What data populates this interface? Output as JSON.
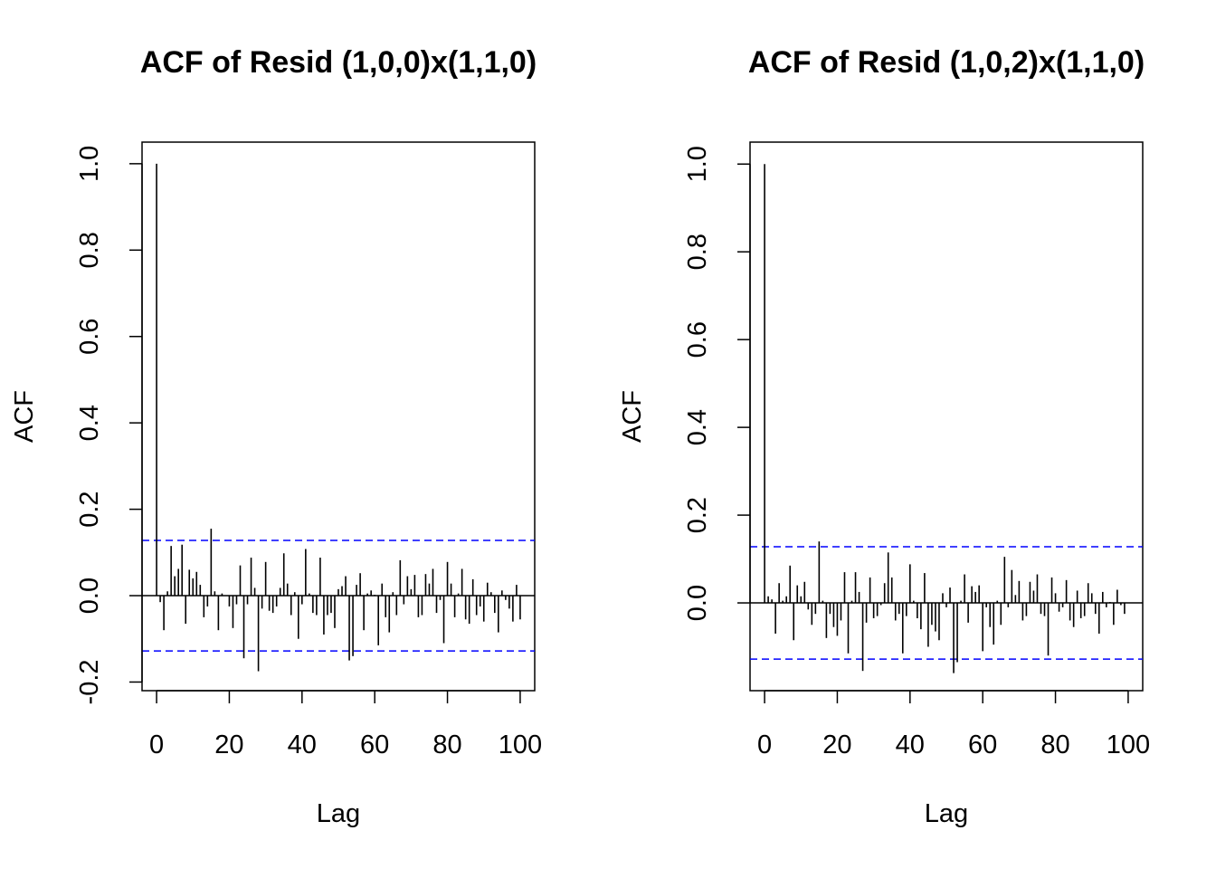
{
  "chart_data": [
    {
      "type": "bar",
      "subtype": "acf",
      "title": "ACF of Resid (1,0,0)x(1,1,0)",
      "xlabel": "Lag",
      "ylabel": "ACF",
      "xlim": [
        -4,
        104
      ],
      "ylim": [
        -0.22,
        1.05
      ],
      "xticks": [
        0,
        20,
        40,
        60,
        80,
        100
      ],
      "xtick_labels": [
        "0",
        "20",
        "40",
        "60",
        "80",
        "100"
      ],
      "yticks": [
        -0.2,
        0.0,
        0.2,
        0.4,
        0.6,
        0.8,
        1.0
      ],
      "ytick_labels": [
        "-0.2",
        "0.0",
        "0.2",
        "0.4",
        "0.6",
        "0.8",
        "1.0"
      ],
      "confidence_bound": 0.128,
      "confidence_color": "#0000ff",
      "bar_color": "#000000",
      "lags": [
        0,
        1,
        2,
        3,
        4,
        5,
        6,
        7,
        8,
        9,
        10,
        11,
        12,
        13,
        14,
        15,
        16,
        17,
        18,
        19,
        20,
        21,
        22,
        23,
        24,
        25,
        26,
        27,
        28,
        29,
        30,
        31,
        32,
        33,
        34,
        35,
        36,
        37,
        38,
        39,
        40,
        41,
        42,
        43,
        44,
        45,
        46,
        47,
        48,
        49,
        50,
        51,
        52,
        53,
        54,
        55,
        56,
        57,
        58,
        59,
        60,
        61,
        62,
        63,
        64,
        65,
        66,
        67,
        68,
        69,
        70,
        71,
        72,
        73,
        74,
        75,
        76,
        77,
        78,
        79,
        80,
        81,
        82,
        83,
        84,
        85,
        86,
        87,
        88,
        89,
        90,
        91,
        92,
        93,
        94,
        95,
        96,
        97,
        98,
        99,
        100
      ],
      "values": [
        1.0,
        -0.015,
        -0.08,
        0.01,
        0.115,
        0.045,
        0.062,
        0.118,
        -0.065,
        0.06,
        0.04,
        0.055,
        0.025,
        -0.05,
        -0.025,
        0.155,
        0.01,
        -0.08,
        0.005,
        0.0,
        -0.025,
        -0.075,
        -0.02,
        0.07,
        -0.145,
        -0.02,
        0.088,
        0.018,
        -0.175,
        -0.03,
        0.078,
        -0.035,
        -0.04,
        -0.025,
        0.018,
        0.098,
        0.028,
        -0.045,
        0.008,
        -0.1,
        -0.02,
        0.108,
        0.005,
        -0.04,
        -0.045,
        0.088,
        -0.09,
        -0.045,
        -0.04,
        -0.075,
        0.015,
        0.022,
        0.045,
        -0.15,
        -0.14,
        0.025,
        0.052,
        -0.08,
        0.005,
        0.012,
        0.002,
        -0.115,
        0.028,
        -0.05,
        -0.085,
        0.008,
        -0.045,
        0.082,
        -0.02,
        0.045,
        0.015,
        0.048,
        -0.05,
        -0.045,
        0.05,
        0.028,
        0.062,
        -0.04,
        -0.01,
        -0.11,
        0.078,
        0.028,
        -0.05,
        0.005,
        0.062,
        -0.055,
        -0.065,
        0.038,
        -0.045,
        -0.025,
        -0.06,
        0.03,
        0.008,
        -0.04,
        -0.085,
        0.012,
        -0.01,
        -0.03,
        -0.06,
        0.025,
        -0.055
      ]
    },
    {
      "type": "bar",
      "subtype": "acf",
      "title": "ACF of Resid (1,0,2)x(1,1,0)",
      "xlabel": "Lag",
      "ylabel": "ACF",
      "xlim": [
        -4,
        104
      ],
      "ylim": [
        -0.2,
        1.05
      ],
      "xticks": [
        0,
        20,
        40,
        60,
        80,
        100
      ],
      "xtick_labels": [
        "0",
        "20",
        "40",
        "60",
        "80",
        "100"
      ],
      "yticks": [
        0.0,
        0.2,
        0.4,
        0.6,
        0.8,
        1.0
      ],
      "ytick_labels": [
        "0.0",
        "0.2",
        "0.4",
        "0.6",
        "0.8",
        "1.0"
      ],
      "confidence_bound": 0.128,
      "confidence_color": "#0000ff",
      "bar_color": "#000000",
      "lags": [
        0,
        1,
        2,
        3,
        4,
        5,
        6,
        7,
        8,
        9,
        10,
        11,
        12,
        13,
        14,
        15,
        16,
        17,
        18,
        19,
        20,
        21,
        22,
        23,
        24,
        25,
        26,
        27,
        28,
        29,
        30,
        31,
        32,
        33,
        34,
        35,
        36,
        37,
        38,
        39,
        40,
        41,
        42,
        43,
        44,
        45,
        46,
        47,
        48,
        49,
        50,
        51,
        52,
        53,
        54,
        55,
        56,
        57,
        58,
        59,
        60,
        61,
        62,
        63,
        64,
        65,
        66,
        67,
        68,
        69,
        70,
        71,
        72,
        73,
        74,
        75,
        76,
        77,
        78,
        79,
        80,
        81,
        82,
        83,
        84,
        85,
        86,
        87,
        88,
        89,
        90,
        91,
        92,
        93,
        94,
        95,
        96,
        97,
        98,
        99,
        100
      ],
      "values": [
        1.0,
        0.015,
        0.008,
        -0.07,
        0.045,
        0.005,
        0.015,
        0.085,
        -0.085,
        0.04,
        0.015,
        0.048,
        -0.015,
        -0.05,
        -0.025,
        0.14,
        0.005,
        -0.08,
        -0.025,
        -0.055,
        -0.075,
        -0.04,
        0.07,
        -0.115,
        0.005,
        0.07,
        0.025,
        -0.155,
        -0.045,
        0.058,
        -0.035,
        -0.03,
        -0.005,
        0.045,
        0.115,
        0.058,
        -0.04,
        -0.025,
        -0.115,
        -0.03,
        0.088,
        0.005,
        -0.035,
        -0.06,
        0.068,
        -0.1,
        -0.05,
        -0.065,
        -0.085,
        0.022,
        -0.01,
        0.035,
        -0.16,
        -0.135,
        0.005,
        0.065,
        -0.045,
        0.038,
        0.025,
        0.04,
        -0.11,
        -0.01,
        -0.055,
        -0.095,
        0.005,
        -0.05,
        0.105,
        -0.01,
        0.075,
        0.018,
        0.05,
        -0.04,
        -0.03,
        0.048,
        0.028,
        0.065,
        -0.025,
        -0.03,
        -0.12,
        0.058,
        0.022,
        -0.02,
        -0.01,
        0.052,
        -0.04,
        -0.055,
        0.028,
        -0.035,
        -0.03,
        0.045,
        0.022,
        -0.025,
        -0.07,
        0.025,
        -0.01,
        0.002,
        -0.05,
        0.03,
        -0.005,
        -0.025,
        0.0
      ]
    }
  ]
}
